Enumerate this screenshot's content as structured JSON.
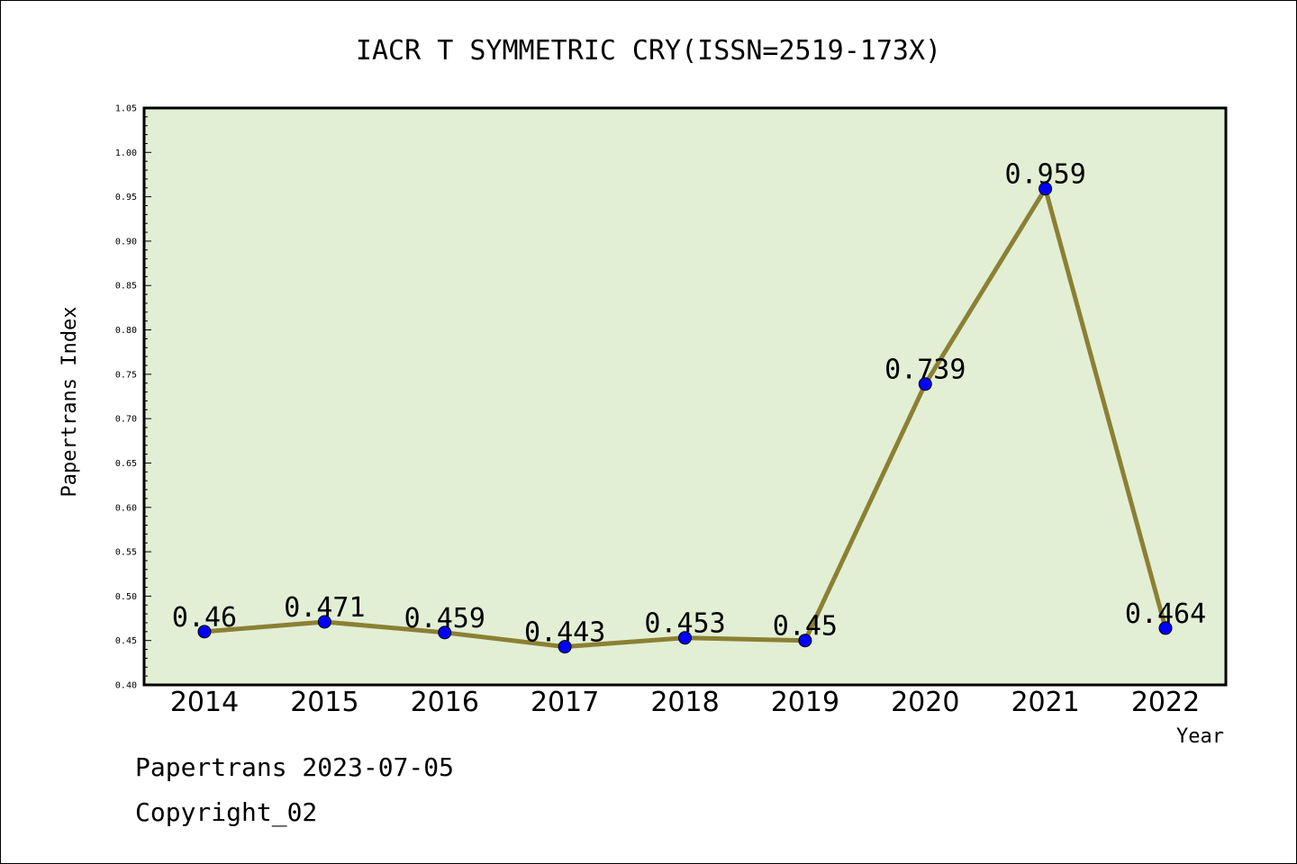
{
  "chart_data": {
    "type": "line",
    "title": "IACR T SYMMETRIC CRY(ISSN=2519-173X)",
    "xlabel": "Year",
    "ylabel": "Papertrans Index",
    "categories": [
      "2014",
      "2015",
      "2016",
      "2017",
      "2018",
      "2019",
      "2020",
      "2021",
      "2022"
    ],
    "series": [
      {
        "values": [
          0.46,
          0.471,
          0.459,
          0.443,
          0.453,
          0.45,
          0.739,
          0.959,
          0.464
        ],
        "labels": [
          "0.46",
          "0.471",
          "0.459",
          "0.443",
          "0.453",
          "0.45",
          "0.739",
          "0.959",
          "0.464"
        ]
      }
    ],
    "ylim": [
      0.4,
      1.05
    ],
    "yticks": [
      "0.40",
      "0.45",
      "0.50",
      "0.55",
      "0.60",
      "0.65",
      "0.70",
      "0.75",
      "0.80",
      "0.85",
      "0.90",
      "0.95",
      "1.00",
      "1.05"
    ],
    "grid": false,
    "legend": "none",
    "colors": {
      "plot_background": "#e2efd5",
      "line": "#8b8033",
      "marker": "#0000ff"
    }
  },
  "footer": {
    "line1": "Papertrans 2023-07-05",
    "line2": "Copyright_02"
  }
}
